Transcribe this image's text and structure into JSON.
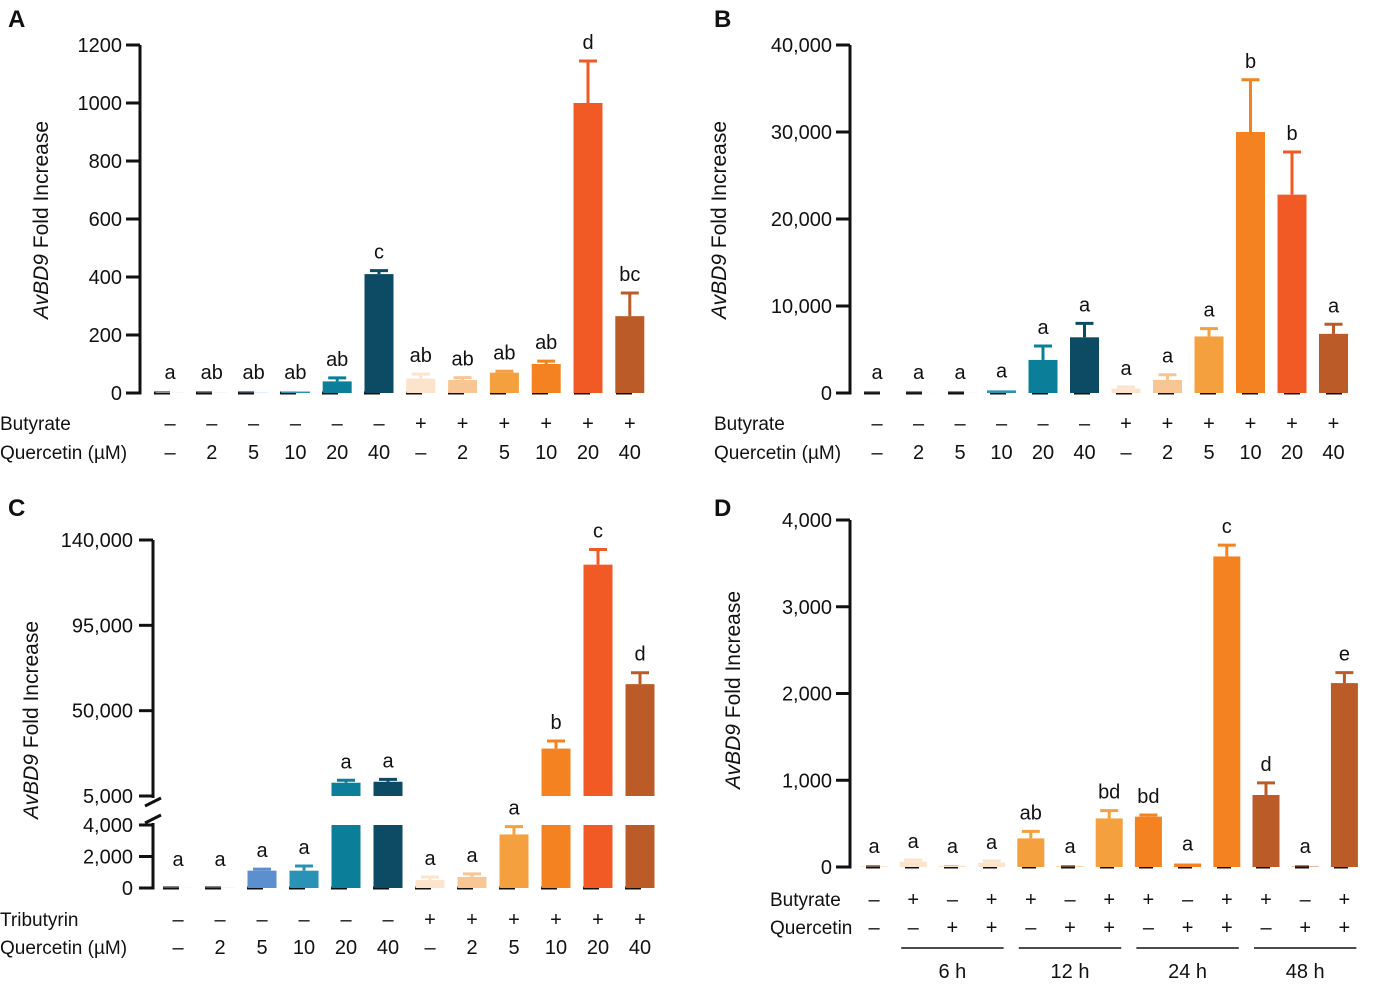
{
  "chart_data": [
    {
      "type": "bar",
      "panel": "A",
      "ylabel_italic": "AvBD9",
      "ylabel_rest": " Fold Increase",
      "yticks": [
        "0",
        "200",
        "400",
        "600",
        "800",
        "1000",
        "1200"
      ],
      "ytick_values": [
        0,
        200,
        400,
        600,
        800,
        1000,
        1200
      ],
      "ylim": [
        0,
        1200
      ],
      "values": [
        2,
        1,
        1,
        5,
        40,
        410,
        50,
        45,
        70,
        100,
        1000,
        265
      ],
      "errors": [
        0,
        0,
        0,
        0,
        12,
        12,
        15,
        8,
        5,
        10,
        145,
        80
      ],
      "colors": [
        "#e8eef7",
        "#cfe3ee",
        "#9cc2e8",
        "#2a93b5",
        "#0b7f99",
        "#0d4a63",
        "#fce3cc",
        "#f8c692",
        "#f5a03f",
        "#f58220",
        "#f15a24",
        "#bb5b28"
      ],
      "significance": [
        "a",
        "ab",
        "ab",
        "ab",
        "ab",
        "c",
        "ab",
        "ab",
        "ab",
        "ab",
        "d",
        "bc"
      ],
      "row1_label": "Butyrate",
      "row2_label": "Quercetin (µM)",
      "row1": [
        "–",
        "–",
        "–",
        "–",
        "–",
        "–",
        "+",
        "+",
        "+",
        "+",
        "+",
        "+"
      ],
      "row2": [
        "–",
        "2",
        "5",
        "10",
        "20",
        "40",
        "–",
        "2",
        "5",
        "10",
        "20",
        "40"
      ]
    },
    {
      "type": "bar",
      "panel": "B",
      "ylabel_italic": "AvBD9",
      "ylabel_rest": " Fold Increase",
      "yticks": [
        "0",
        "10,000",
        "20,000",
        "30,000",
        "40,000"
      ],
      "ytick_values": [
        0,
        10000,
        20000,
        30000,
        40000
      ],
      "ylim": [
        0,
        40000
      ],
      "values": [
        10,
        10,
        10,
        300,
        3800,
        6400,
        500,
        1500,
        6500,
        30000,
        22800,
        6800
      ],
      "errors": [
        0,
        0,
        0,
        100,
        1600,
        1600,
        200,
        600,
        900,
        6000,
        4900,
        1100
      ],
      "colors": [
        "#e8eef7",
        "#cfe3ee",
        "#9cc2e8",
        "#2a93b5",
        "#0b7f99",
        "#0d4a63",
        "#fce3cc",
        "#f8c692",
        "#f5a03f",
        "#f58220",
        "#f15a24",
        "#bb5b28"
      ],
      "significance": [
        "a",
        "a",
        "a",
        "a",
        "a",
        "a",
        "a",
        "a",
        "a",
        "b",
        "b",
        "a"
      ],
      "row1_label": "Butyrate",
      "row2_label": "Quercetin (µM)",
      "row1": [
        "–",
        "–",
        "–",
        "–",
        "–",
        "–",
        "+",
        "+",
        "+",
        "+",
        "+",
        "+"
      ],
      "row2": [
        "–",
        "2",
        "5",
        "10",
        "20",
        "40",
        "–",
        "2",
        "5",
        "10",
        "20",
        "40"
      ]
    },
    {
      "type": "bar",
      "panel": "C",
      "broken_axis": true,
      "ylabel_italic": "AvBD9",
      "ylabel_rest": " Fold Increase",
      "lower_yticks": [
        "0",
        "2,000",
        "4,000"
      ],
      "lower_ytick_values": [
        0,
        2000,
        4000
      ],
      "lower_ylim": [
        0,
        4000
      ],
      "upper_yticks": [
        "5,000",
        "50,000",
        "95,000",
        "140,000"
      ],
      "upper_ytick_values": [
        5000,
        50000,
        95000,
        140000
      ],
      "upper_ylim": [
        5000,
        140000
      ],
      "values": [
        20,
        20,
        1100,
        1100,
        12000,
        12500,
        500,
        700,
        3400,
        30000,
        127000,
        64000
      ],
      "errors": [
        0,
        0,
        100,
        300,
        1300,
        1300,
        200,
        200,
        500,
        4000,
        8000,
        6000
      ],
      "colors": [
        "#e8eef7",
        "#cfe3ee",
        "#5b8fd0",
        "#2a93b5",
        "#0b7f99",
        "#0d4a63",
        "#fce3cc",
        "#f8c692",
        "#f5a03f",
        "#f58220",
        "#f15a24",
        "#bb5b28"
      ],
      "significance": [
        "a",
        "a",
        "a",
        "a",
        "a",
        "a",
        "a",
        "a",
        "a",
        "b",
        "c",
        "d"
      ],
      "row1_label": "Tributyrin",
      "row2_label": "Quercetin (µM)",
      "row1": [
        "–",
        "–",
        "–",
        "–",
        "–",
        "–",
        "+",
        "+",
        "+",
        "+",
        "+",
        "+"
      ],
      "row2": [
        "–",
        "2",
        "5",
        "10",
        "20",
        "40",
        "–",
        "2",
        "5",
        "10",
        "20",
        "40"
      ]
    },
    {
      "type": "bar",
      "panel": "D",
      "ylabel_italic": "AvBD9",
      "ylabel_rest": " Fold Increase",
      "yticks": [
        "0",
        "1,000",
        "2,000",
        "3,000",
        "4,000"
      ],
      "ytick_values": [
        0,
        1000,
        2000,
        3000,
        4000
      ],
      "ylim": [
        0,
        4000
      ],
      "values": [
        5,
        60,
        15,
        50,
        330,
        5,
        560,
        580,
        40,
        3580,
        830,
        5,
        2120
      ],
      "errors": [
        0,
        20,
        10,
        20,
        80,
        0,
        90,
        20,
        10,
        130,
        140,
        0,
        120
      ],
      "colors": [
        "#f8c692",
        "#fce3cc",
        "#fce3cc",
        "#fce3cc",
        "#f5a03f",
        "#f5a03f",
        "#f5a03f",
        "#f58220",
        "#f58220",
        "#f58220",
        "#bb5b28",
        "#bb5b28",
        "#bb5b28"
      ],
      "significance": [
        "a",
        "a",
        "a",
        "a",
        "ab",
        "a",
        "bd",
        "bd",
        "a",
        "c",
        "d",
        "a",
        "e"
      ],
      "row1_label": "Butyrate",
      "row2_label": "Quercetin",
      "row1": [
        "–",
        "+",
        "–",
        "+",
        "+",
        "–",
        "+",
        "+",
        "–",
        "+",
        "+",
        "–",
        "+"
      ],
      "row2": [
        "–",
        "–",
        "+",
        "+",
        "–",
        "+",
        "+",
        "–",
        "+",
        "+",
        "–",
        "+",
        "+"
      ],
      "groups": [
        "6 h",
        "12 h",
        "24 h",
        "48 h"
      ]
    }
  ]
}
